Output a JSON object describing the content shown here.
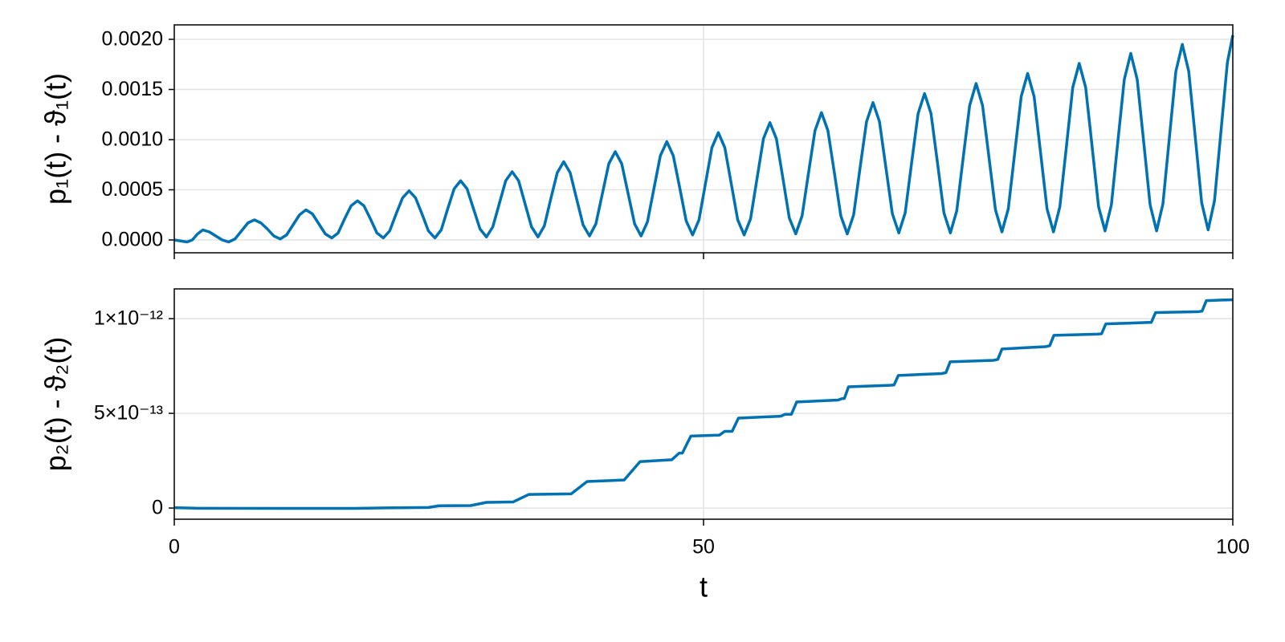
{
  "chart_data": [
    {
      "type": "line",
      "ylabel": "p₁(t) - ϑ₁(t)",
      "show_xtick_labels": false,
      "grid": true,
      "xlim": [
        0,
        100
      ],
      "xticks": [
        0,
        50,
        100
      ],
      "ylim": [
        -0.000128,
        0.002144
      ],
      "yticks": [
        {
          "value": 0,
          "label": "0.0000"
        },
        {
          "value": 0.0005,
          "label": "0.0005"
        },
        {
          "value": 0.001,
          "label": "0.0010"
        },
        {
          "value": 0.0015,
          "label": "0.0015"
        },
        {
          "value": 0.002,
          "label": "0.0020"
        }
      ],
      "x": [
        0,
        0.6,
        1.2,
        1.7,
        2.2,
        2.7,
        3.31,
        3.92,
        4.53,
        5.14,
        5.74,
        6.35,
        6.96,
        7.57,
        8.18,
        8.79,
        9.4,
        10.01,
        10.61,
        11.22,
        11.83,
        12.44,
        13.05,
        13.66,
        14.27,
        14.88,
        15.48,
        16.09,
        16.7,
        17.31,
        17.92,
        18.53,
        19.14,
        19.75,
        20.35,
        20.96,
        21.57,
        22.18,
        22.79,
        23.4,
        24.01,
        24.62,
        25.22,
        25.83,
        26.44,
        27.05,
        27.66,
        28.27,
        28.88,
        29.49,
        30.09,
        30.7,
        31.31,
        31.92,
        32.53,
        33.14,
        33.75,
        34.36,
        34.96,
        35.57,
        36.18,
        36.79,
        37.4,
        38.01,
        38.62,
        39.23,
        39.83,
        40.44,
        41.05,
        41.66,
        42.27,
        42.88,
        43.49,
        44.1,
        44.7,
        45.31,
        45.92,
        46.53,
        47.14,
        47.75,
        48.36,
        48.97,
        49.57,
        50.18,
        50.79,
        51.4,
        52.01,
        52.62,
        53.23,
        53.84,
        54.44,
        55.05,
        55.66,
        56.27,
        56.88,
        57.49,
        58.1,
        58.71,
        59.31,
        59.92,
        60.53,
        61.14,
        61.75,
        62.36,
        62.97,
        63.58,
        64.18,
        64.79,
        65.4,
        66.01,
        66.62,
        67.23,
        67.84,
        68.45,
        69.05,
        69.66,
        70.27,
        70.88,
        71.49,
        72.1,
        72.71,
        73.32,
        73.92,
        74.53,
        75.14,
        75.75,
        76.36,
        76.97,
        77.58,
        78.19,
        78.79,
        79.4,
        80.01,
        80.62,
        81.23,
        81.84,
        82.45,
        83.06,
        83.66,
        84.27,
        84.88,
        85.49,
        86.1,
        86.71,
        87.32,
        87.93,
        88.53,
        89.14,
        89.75,
        90.36,
        90.97,
        91.58,
        92.19,
        92.8,
        93.4,
        94.01,
        94.62,
        95.23,
        95.84,
        96.45,
        97.06,
        97.67,
        98.27,
        98.88,
        99.49,
        100
      ],
      "series": [
        {
          "color": "#0072b2",
          "values": [
            0,
            -1e-05,
            -2e-05,
            0,
            6e-05,
            0.0001,
            8e-05,
            4e-05,
            0,
            -2e-05,
            1e-05,
            9e-05,
            0.00017,
            0.0002,
            0.00017,
            0.00011,
            4e-05,
            1e-05,
            5e-05,
            0.00015,
            0.00025,
            0.0003,
            0.00026,
            0.00016,
            6e-05,
            2e-05,
            7e-05,
            0.00021,
            0.00034,
            0.00039,
            0.00034,
            0.00021,
            7e-05,
            2e-05,
            9e-05,
            0.00026,
            0.00042,
            0.00049,
            0.00042,
            0.00026,
            9e-05,
            2e-05,
            0.0001,
            0.00031,
            0.00051,
            0.00059,
            0.00051,
            0.00031,
            0.00011,
            3e-05,
            0.00013,
            0.00036,
            0.00059,
            0.00068,
            0.00059,
            0.00036,
            0.00013,
            3e-05,
            0.00014,
            0.00041,
            0.00067,
            0.00078,
            0.00067,
            0.00041,
            0.00015,
            4e-05,
            0.00016,
            0.00046,
            0.00076,
            0.00088,
            0.00076,
            0.00046,
            0.00016,
            4e-05,
            0.00018,
            0.00051,
            0.00084,
            0.00098,
            0.00084,
            0.00052,
            0.00019,
            5e-05,
            0.0002,
            0.00056,
            0.00092,
            0.00107,
            0.00092,
            0.00056,
            0.0002,
            5e-05,
            0.00021,
            0.00061,
            0.00101,
            0.00117,
            0.00101,
            0.00062,
            0.00022,
            6e-05,
            0.00024,
            0.00067,
            0.00109,
            0.00127,
            0.00109,
            0.00067,
            0.00024,
            6e-05,
            0.00025,
            0.00072,
            0.00118,
            0.00137,
            0.00118,
            0.00072,
            0.00026,
            7e-05,
            0.00027,
            0.00077,
            0.00126,
            0.00146,
            0.00126,
            0.00077,
            0.00027,
            7e-05,
            0.00029,
            0.00082,
            0.00134,
            0.00156,
            0.00134,
            0.00082,
            0.0003,
            8e-05,
            0.00031,
            0.00087,
            0.00143,
            0.00166,
            0.00143,
            0.00087,
            0.00031,
            8e-05,
            0.00033,
            0.00092,
            0.00152,
            0.00176,
            0.00152,
            0.00093,
            0.00033,
            9e-05,
            0.00035,
            0.00098,
            0.0016,
            0.00186,
            0.0016,
            0.00098,
            0.00035,
            9e-05,
            0.00036,
            0.00102,
            0.00168,
            0.00195,
            0.00168,
            0.00103,
            0.00037,
            0.0001,
            0.00039,
            0.00108,
            0.00177,
            0.00204
          ]
        }
      ]
    },
    {
      "type": "line",
      "ylabel": "p₂(t) - ϑ₂(t)",
      "xlabel": "t",
      "show_xtick_labels": true,
      "grid": true,
      "xlim": [
        0,
        100
      ],
      "xticks": [
        0,
        50,
        100
      ],
      "ylim": [
        -5.9e-14,
        1.157e-12
      ],
      "yticks": [
        0,
        {
          "value": 5e-13,
          "label": "5×10⁻¹³"
        },
        {
          "value": 1e-12,
          "label": "1×10⁻¹²"
        }
      ],
      "x": [
        0,
        2,
        10,
        17,
        20,
        24,
        25,
        28,
        29.5,
        32,
        33.5,
        37.5,
        39,
        42.5,
        44,
        47,
        47.7,
        48,
        48.8,
        51.5,
        52,
        52.7,
        53.3,
        57.3,
        57.7,
        58.3,
        58.8,
        62.7,
        63.1,
        63.3,
        63.7,
        67.6,
        68,
        68.4,
        72.5,
        72.9,
        73.3,
        77.4,
        77.8,
        78.2,
        82.3,
        82.7,
        83.1,
        87.2,
        87.6,
        88,
        92.1,
        92.3,
        92.7,
        96.8,
        97.1,
        97.5,
        100
      ],
      "series": [
        {
          "color": "#0072b2",
          "values": [
            2e-15,
            -1e-15,
            -2e-15,
            -2e-15,
            1e-15,
            3e-15,
            1.2e-14,
            1.3e-14,
            3e-14,
            3.2e-14,
            7.2e-14,
            7.5e-14,
            1.4e-13,
            1.48e-13,
            2.45e-13,
            2.55e-13,
            2.9e-13,
            2.9e-13,
            3.8e-13,
            3.85e-13,
            4.05e-13,
            4.05e-13,
            4.75e-13,
            4.85e-13,
            4.95e-13,
            4.95e-13,
            5.6e-13,
            5.7e-13,
            5.78e-13,
            5.78e-13,
            6.4e-13,
            6.48e-13,
            6.5e-13,
            7e-13,
            7.1e-13,
            7.15e-13,
            7.72e-13,
            7.8e-13,
            7.85e-13,
            8.4e-13,
            8.52e-13,
            8.57e-13,
            9.12e-13,
            9.18e-13,
            9.2e-13,
            9.72e-13,
            9.8e-13,
            9.8e-13,
            1.032e-12,
            1.037e-12,
            1.04e-12,
            1.095e-12,
            1.1e-12
          ]
        }
      ]
    }
  ]
}
